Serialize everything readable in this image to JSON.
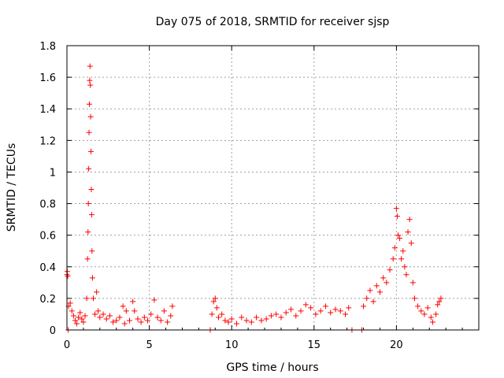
{
  "chart_data": {
    "type": "scatter",
    "title": "Day 075 of 2018, SRMTID for receiver sjsp",
    "xlabel": "GPS time / hours",
    "ylabel": "SRMTID / TECUs",
    "xlim": [
      0,
      25
    ],
    "ylim": [
      0,
      1.8
    ],
    "xticks": [
      0,
      5,
      10,
      15,
      20
    ],
    "yticks": [
      0,
      0.2,
      0.4,
      0.6,
      0.8,
      1.0,
      1.2,
      1.4,
      1.6,
      1.8
    ],
    "xtick_labels": [
      "0",
      "5",
      "10",
      "15",
      "20"
    ],
    "ytick_labels": [
      "0",
      "0.2",
      "0.4",
      "0.6",
      "0.8",
      "1",
      "1.2",
      "1.4",
      "1.6",
      "1.8"
    ],
    "grid": true,
    "marker": "+",
    "color": "#ff0000",
    "series": [
      {
        "name": "SRMTID",
        "points": [
          [
            0.0,
            0.35
          ],
          [
            0.02,
            0.37
          ],
          [
            0.05,
            0.34
          ],
          [
            0.08,
            0.0
          ],
          [
            0.1,
            0.15
          ],
          [
            0.2,
            0.17
          ],
          [
            0.3,
            0.12
          ],
          [
            0.4,
            0.09
          ],
          [
            0.5,
            0.06
          ],
          [
            0.6,
            0.04
          ],
          [
            0.7,
            0.08
          ],
          [
            0.8,
            0.11
          ],
          [
            0.9,
            0.07
          ],
          [
            1.0,
            0.05
          ],
          [
            1.1,
            0.09
          ],
          [
            1.2,
            0.2
          ],
          [
            1.25,
            0.45
          ],
          [
            1.28,
            0.62
          ],
          [
            1.3,
            0.8
          ],
          [
            1.32,
            1.02
          ],
          [
            1.34,
            1.25
          ],
          [
            1.36,
            1.43
          ],
          [
            1.38,
            1.58
          ],
          [
            1.4,
            1.67
          ],
          [
            1.42,
            1.55
          ],
          [
            1.44,
            1.35
          ],
          [
            1.46,
            1.13
          ],
          [
            1.48,
            0.89
          ],
          [
            1.5,
            0.73
          ],
          [
            1.52,
            0.5
          ],
          [
            1.55,
            0.33
          ],
          [
            1.6,
            0.2
          ],
          [
            1.7,
            0.1
          ],
          [
            1.8,
            0.24
          ],
          [
            1.9,
            0.12
          ],
          [
            2.0,
            0.08
          ],
          [
            2.2,
            0.1
          ],
          [
            2.4,
            0.07
          ],
          [
            2.6,
            0.09
          ],
          [
            2.8,
            0.05
          ],
          [
            3.0,
            0.06
          ],
          [
            3.2,
            0.08
          ],
          [
            3.4,
            0.15
          ],
          [
            3.5,
            0.04
          ],
          [
            3.6,
            0.12
          ],
          [
            3.8,
            0.06
          ],
          [
            4.0,
            0.18
          ],
          [
            4.1,
            0.12
          ],
          [
            4.3,
            0.07
          ],
          [
            4.5,
            0.05
          ],
          [
            4.7,
            0.08
          ],
          [
            4.9,
            0.06
          ],
          [
            5.1,
            0.1
          ],
          [
            5.3,
            0.19
          ],
          [
            5.5,
            0.08
          ],
          [
            5.7,
            0.06
          ],
          [
            5.9,
            0.12
          ],
          [
            6.1,
            0.05
          ],
          [
            6.3,
            0.09
          ],
          [
            6.4,
            0.15
          ],
          [
            8.7,
            0.0
          ],
          [
            8.8,
            0.1
          ],
          [
            8.9,
            0.18
          ],
          [
            9.0,
            0.2
          ],
          [
            9.1,
            0.14
          ],
          [
            9.2,
            0.08
          ],
          [
            9.4,
            0.1
          ],
          [
            9.6,
            0.06
          ],
          [
            9.8,
            0.05
          ],
          [
            10.0,
            0.07
          ],
          [
            10.3,
            0.04
          ],
          [
            10.6,
            0.08
          ],
          [
            10.9,
            0.06
          ],
          [
            11.2,
            0.05
          ],
          [
            11.5,
            0.08
          ],
          [
            11.8,
            0.06
          ],
          [
            12.1,
            0.07
          ],
          [
            12.4,
            0.09
          ],
          [
            12.7,
            0.1
          ],
          [
            13.0,
            0.08
          ],
          [
            13.3,
            0.11
          ],
          [
            13.6,
            0.13
          ],
          [
            13.9,
            0.09
          ],
          [
            14.2,
            0.12
          ],
          [
            14.5,
            0.16
          ],
          [
            14.8,
            0.14
          ],
          [
            15.1,
            0.1
          ],
          [
            15.4,
            0.12
          ],
          [
            15.7,
            0.15
          ],
          [
            16.0,
            0.11
          ],
          [
            16.3,
            0.13
          ],
          [
            16.6,
            0.12
          ],
          [
            16.9,
            0.1
          ],
          [
            17.1,
            0.14
          ],
          [
            17.3,
            0.0
          ],
          [
            17.9,
            0.0
          ],
          [
            18.0,
            0.15
          ],
          [
            18.2,
            0.2
          ],
          [
            18.4,
            0.25
          ],
          [
            18.6,
            0.18
          ],
          [
            18.8,
            0.28
          ],
          [
            19.0,
            0.24
          ],
          [
            19.2,
            0.33
          ],
          [
            19.4,
            0.3
          ],
          [
            19.6,
            0.38
          ],
          [
            19.8,
            0.45
          ],
          [
            19.9,
            0.52
          ],
          [
            20.0,
            0.77
          ],
          [
            20.05,
            0.72
          ],
          [
            20.1,
            0.6
          ],
          [
            20.2,
            0.58
          ],
          [
            20.3,
            0.45
          ],
          [
            20.4,
            0.5
          ],
          [
            20.5,
            0.4
          ],
          [
            20.6,
            0.35
          ],
          [
            20.7,
            0.62
          ],
          [
            20.8,
            0.7
          ],
          [
            20.9,
            0.55
          ],
          [
            21.0,
            0.3
          ],
          [
            21.1,
            0.2
          ],
          [
            21.3,
            0.15
          ],
          [
            21.5,
            0.12
          ],
          [
            21.7,
            0.1
          ],
          [
            21.9,
            0.14
          ],
          [
            22.1,
            0.08
          ],
          [
            22.2,
            0.05
          ],
          [
            22.4,
            0.1
          ],
          [
            22.5,
            0.16
          ],
          [
            22.6,
            0.18
          ],
          [
            22.7,
            0.2
          ]
        ]
      }
    ]
  }
}
